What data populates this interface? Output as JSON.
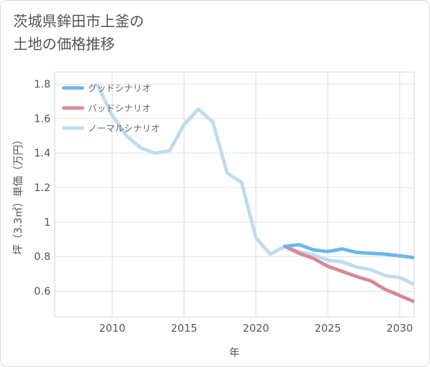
{
  "page": {
    "title_line1": "茨城県鉾田市上釜の",
    "title_line2": "土地の価格推移"
  },
  "chart_data": {
    "type": "line",
    "xlabel": "年",
    "ylabel": "坪（3.3㎡）単価（万円）",
    "xlim": [
      2006,
      2031
    ],
    "ylim": [
      0.45,
      1.87
    ],
    "x_ticks": [
      2010,
      2015,
      2020,
      2025,
      2030
    ],
    "y_ticks": [
      0.6,
      0.8,
      1,
      1.2,
      1.4,
      1.6,
      1.8
    ],
    "grid": true,
    "legend": "top-left",
    "series": [
      {
        "name": "グッドシナリオ",
        "color": "#6cb6ee",
        "x": [
          2022,
          2023,
          2024,
          2025,
          2026,
          2027,
          2028,
          2029,
          2030,
          2031
        ],
        "y": [
          0.86,
          0.87,
          0.84,
          0.83,
          0.845,
          0.825,
          0.82,
          0.815,
          0.805,
          0.795
        ]
      },
      {
        "name": "バッドシナリオ",
        "color": "#d98892",
        "x": [
          2022,
          2023,
          2024,
          2025,
          2026,
          2027,
          2028,
          2029,
          2030,
          2031
        ],
        "y": [
          0.86,
          0.82,
          0.79,
          0.745,
          0.715,
          0.685,
          0.66,
          0.61,
          0.575,
          0.54
        ]
      },
      {
        "name": "ノーマルシナリオ",
        "color": "#bfdcec",
        "x": [
          2009,
          2010,
          2011,
          2012,
          2013,
          2014,
          2015,
          2016,
          2017,
          2018,
          2019,
          2020,
          2021,
          2022,
          2023,
          2024,
          2025,
          2026,
          2027,
          2028,
          2029,
          2030,
          2031
        ],
        "y": [
          1.79,
          1.62,
          1.5,
          1.43,
          1.4,
          1.415,
          1.565,
          1.655,
          1.58,
          1.285,
          1.23,
          0.91,
          0.815,
          0.86,
          0.83,
          0.81,
          0.78,
          0.77,
          0.74,
          0.725,
          0.69,
          0.68,
          0.64
        ]
      }
    ]
  }
}
